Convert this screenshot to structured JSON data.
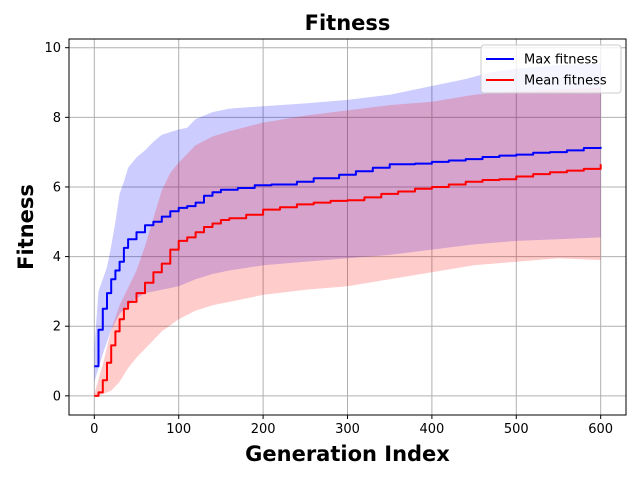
{
  "chart_data": {
    "type": "line",
    "title": "Fitness",
    "xlabel": "Generation Index",
    "ylabel": "Fitness",
    "xlim": [
      -30,
      630
    ],
    "ylim": [
      -0.55,
      10.25
    ],
    "xticks": [
      0,
      100,
      200,
      300,
      400,
      500,
      600
    ],
    "yticks": [
      0,
      2,
      4,
      6,
      8,
      10
    ],
    "grid": true,
    "legend_position": "top-right",
    "series": [
      {
        "name": "Max fitness",
        "color": "#0000ff",
        "band_color": "#0000ff",
        "points": [
          [
            0,
            0.85
          ],
          [
            5,
            1.9
          ],
          [
            10,
            2.5
          ],
          [
            15,
            2.95
          ],
          [
            20,
            3.35
          ],
          [
            25,
            3.6
          ],
          [
            30,
            3.85
          ],
          [
            35,
            4.25
          ],
          [
            40,
            4.5
          ],
          [
            50,
            4.7
          ],
          [
            60,
            4.9
          ],
          [
            70,
            5.0
          ],
          [
            80,
            5.15
          ],
          [
            90,
            5.3
          ],
          [
            100,
            5.4
          ],
          [
            110,
            5.45
          ],
          [
            120,
            5.55
          ],
          [
            130,
            5.75
          ],
          [
            140,
            5.85
          ],
          [
            150,
            5.92
          ],
          [
            170,
            5.97
          ],
          [
            190,
            6.05
          ],
          [
            210,
            6.07
          ],
          [
            240,
            6.15
          ],
          [
            260,
            6.25
          ],
          [
            290,
            6.35
          ],
          [
            310,
            6.45
          ],
          [
            330,
            6.55
          ],
          [
            350,
            6.65
          ],
          [
            380,
            6.67
          ],
          [
            400,
            6.72
          ],
          [
            420,
            6.76
          ],
          [
            440,
            6.8
          ],
          [
            460,
            6.86
          ],
          [
            480,
            6.9
          ],
          [
            500,
            6.93
          ],
          [
            520,
            6.98
          ],
          [
            540,
            7.0
          ],
          [
            560,
            7.05
          ],
          [
            580,
            7.12
          ],
          [
            600,
            7.15
          ]
        ],
        "band_upper": [
          [
            0,
            1.35
          ],
          [
            5,
            3.0
          ],
          [
            15,
            3.7
          ],
          [
            20,
            4.3
          ],
          [
            25,
            5.0
          ],
          [
            30,
            5.8
          ],
          [
            35,
            6.15
          ],
          [
            40,
            6.55
          ],
          [
            50,
            6.85
          ],
          [
            60,
            7.05
          ],
          [
            70,
            7.3
          ],
          [
            80,
            7.5
          ],
          [
            100,
            7.65
          ],
          [
            110,
            7.7
          ],
          [
            120,
            7.95
          ],
          [
            140,
            8.15
          ],
          [
            160,
            8.25
          ],
          [
            200,
            8.32
          ],
          [
            250,
            8.4
          ],
          [
            300,
            8.5
          ],
          [
            350,
            8.65
          ],
          [
            400,
            8.9
          ],
          [
            440,
            9.1
          ],
          [
            470,
            9.3
          ],
          [
            500,
            9.4
          ],
          [
            550,
            9.5
          ],
          [
            600,
            9.55
          ]
        ],
        "band_lower": [
          [
            0,
            0.4
          ],
          [
            10,
            1.2
          ],
          [
            20,
            1.9
          ],
          [
            30,
            2.35
          ],
          [
            40,
            2.6
          ],
          [
            50,
            2.8
          ],
          [
            60,
            2.95
          ],
          [
            80,
            3.05
          ],
          [
            100,
            3.15
          ],
          [
            120,
            3.35
          ],
          [
            140,
            3.5
          ],
          [
            160,
            3.6
          ],
          [
            200,
            3.75
          ],
          [
            250,
            3.85
          ],
          [
            300,
            3.95
          ],
          [
            350,
            4.05
          ],
          [
            400,
            4.2
          ],
          [
            450,
            4.35
          ],
          [
            500,
            4.45
          ],
          [
            550,
            4.5
          ],
          [
            600,
            4.55
          ]
        ]
      },
      {
        "name": "Mean fitness",
        "color": "#ff0000",
        "band_color": "#ff0000",
        "points": [
          [
            0,
            0.0
          ],
          [
            5,
            0.1
          ],
          [
            10,
            0.45
          ],
          [
            15,
            0.95
          ],
          [
            20,
            1.45
          ],
          [
            25,
            1.85
          ],
          [
            30,
            2.2
          ],
          [
            35,
            2.5
          ],
          [
            40,
            2.7
          ],
          [
            50,
            2.95
          ],
          [
            60,
            3.25
          ],
          [
            70,
            3.55
          ],
          [
            80,
            3.8
          ],
          [
            90,
            4.2
          ],
          [
            100,
            4.45
          ],
          [
            110,
            4.55
          ],
          [
            120,
            4.7
          ],
          [
            130,
            4.85
          ],
          [
            140,
            4.95
          ],
          [
            150,
            5.05
          ],
          [
            160,
            5.1
          ],
          [
            180,
            5.2
          ],
          [
            200,
            5.35
          ],
          [
            220,
            5.42
          ],
          [
            240,
            5.5
          ],
          [
            260,
            5.55
          ],
          [
            280,
            5.6
          ],
          [
            300,
            5.62
          ],
          [
            320,
            5.7
          ],
          [
            340,
            5.8
          ],
          [
            360,
            5.87
          ],
          [
            380,
            5.95
          ],
          [
            400,
            6.0
          ],
          [
            420,
            6.07
          ],
          [
            440,
            6.15
          ],
          [
            460,
            6.2
          ],
          [
            480,
            6.22
          ],
          [
            500,
            6.3
          ],
          [
            520,
            6.37
          ],
          [
            540,
            6.42
          ],
          [
            560,
            6.47
          ],
          [
            580,
            6.52
          ],
          [
            600,
            6.65
          ]
        ],
        "band_upper": [
          [
            0,
            0.05
          ],
          [
            10,
            0.9
          ],
          [
            20,
            1.9
          ],
          [
            30,
            2.6
          ],
          [
            40,
            3.1
          ],
          [
            50,
            3.6
          ],
          [
            60,
            4.3
          ],
          [
            70,
            5.1
          ],
          [
            80,
            5.9
          ],
          [
            90,
            6.4
          ],
          [
            100,
            6.7
          ],
          [
            120,
            7.2
          ],
          [
            140,
            7.45
          ],
          [
            160,
            7.6
          ],
          [
            200,
            7.85
          ],
          [
            250,
            8.05
          ],
          [
            300,
            8.2
          ],
          [
            350,
            8.35
          ],
          [
            400,
            8.45
          ],
          [
            450,
            8.65
          ],
          [
            500,
            8.75
          ],
          [
            550,
            8.8
          ],
          [
            600,
            8.85
          ]
        ],
        "band_lower": [
          [
            0,
            0.0
          ],
          [
            10,
            0.05
          ],
          [
            20,
            0.15
          ],
          [
            30,
            0.4
          ],
          [
            40,
            0.8
          ],
          [
            50,
            1.1
          ],
          [
            60,
            1.35
          ],
          [
            70,
            1.6
          ],
          [
            80,
            1.85
          ],
          [
            100,
            2.2
          ],
          [
            120,
            2.45
          ],
          [
            140,
            2.6
          ],
          [
            160,
            2.7
          ],
          [
            200,
            2.9
          ],
          [
            250,
            3.05
          ],
          [
            300,
            3.15
          ],
          [
            350,
            3.35
          ],
          [
            400,
            3.55
          ],
          [
            450,
            3.75
          ],
          [
            500,
            3.85
          ],
          [
            550,
            3.95
          ],
          [
            600,
            3.9
          ]
        ]
      }
    ]
  }
}
